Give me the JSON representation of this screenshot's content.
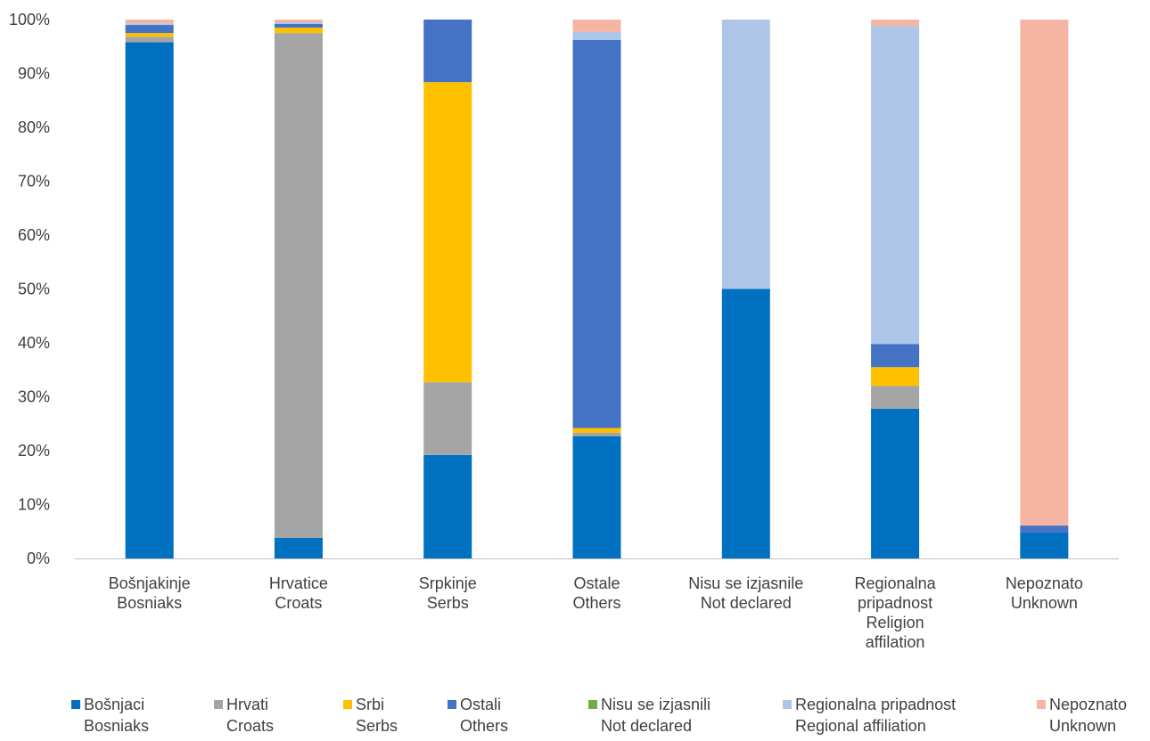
{
  "chart_data": {
    "type": "bar",
    "stacked": true,
    "percent": true,
    "title": "",
    "xlabel": "",
    "ylabel": "",
    "ylim": [
      0,
      100
    ],
    "y_ticks": [
      "0%",
      "10%",
      "20%",
      "30%",
      "40%",
      "50%",
      "60%",
      "70%",
      "80%",
      "90%",
      "100%"
    ],
    "grid": false,
    "legend_position": "bottom",
    "categories": [
      [
        "Bošnjakinje",
        "Bosniaks"
      ],
      [
        "Hrvatice",
        "Croats"
      ],
      [
        "Srpkinje",
        "Serbs"
      ],
      [
        "Ostale",
        "Others"
      ],
      [
        "Nisu se izjasnile",
        "Not declared"
      ],
      [
        "Regionalna",
        "pripadnost",
        "Religion",
        "affilation"
      ],
      [
        "Nepoznato",
        "Unknown"
      ]
    ],
    "series": [
      {
        "name": [
          "Bošnjaci",
          "Bosniaks"
        ],
        "color": "#0070C0",
        "values": [
          95.8,
          3.8,
          19.2,
          22.7,
          50.0,
          27.8,
          4.8
        ]
      },
      {
        "name": [
          "Hrvati",
          "Croats"
        ],
        "color": "#A5A5A5",
        "values": [
          1.0,
          93.7,
          13.5,
          0.6,
          0.0,
          4.2,
          0.0
        ]
      },
      {
        "name": [
          "Srbi",
          "Serbs"
        ],
        "color": "#FFC000",
        "values": [
          0.7,
          1.0,
          55.7,
          0.9,
          0.0,
          3.5,
          0.0
        ]
      },
      {
        "name": [
          "Ostali",
          "Others"
        ],
        "color": "#4472C4",
        "values": [
          1.5,
          0.7,
          11.6,
          72.0,
          0.0,
          4.3,
          1.3
        ]
      },
      {
        "name": [
          "Nisu se izjasnili",
          "Not declared"
        ],
        "color": "#70AD47",
        "values": [
          0.0,
          0.0,
          0.0,
          0.0,
          0.0,
          0.0,
          0.0
        ]
      },
      {
        "name": [
          "Regionalna pripadnost",
          "Regional affiliation"
        ],
        "color": "#ADC5E7",
        "values": [
          0.3,
          0.3,
          0.0,
          1.5,
          50.0,
          59.0,
          0.0
        ]
      },
      {
        "name": [
          "Nepoznato",
          "Unknown"
        ],
        "color": "#F4B6A3",
        "values": [
          0.7,
          0.5,
          0.0,
          2.3,
          0.0,
          1.2,
          93.9
        ]
      }
    ]
  }
}
